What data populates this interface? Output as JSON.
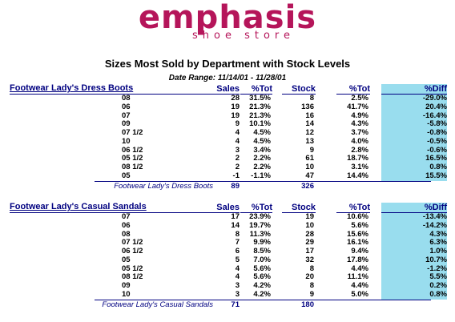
{
  "logo": {
    "main": "emphasis",
    "sub": "shoe store"
  },
  "report_title": "Sizes Most Sold by Department with Stock Levels",
  "date_range": "Date Range: 11/14/01 - 11/28/01",
  "columns": {
    "sales": "Sales",
    "pct_tot": "%Tot",
    "stock": "Stock",
    "stock_pct": "%Tot",
    "diff": "%Diff"
  },
  "sections": [
    {
      "department": "Footwear Lady's Dress Boots",
      "rows": [
        {
          "size": "08",
          "sales": "28",
          "pct": "31.5%",
          "stock": "8",
          "spct": "2.5%",
          "diff": "-29.0%"
        },
        {
          "size": "06",
          "sales": "19",
          "pct": "21.3%",
          "stock": "136",
          "spct": "41.7%",
          "diff": "20.4%"
        },
        {
          "size": "07",
          "sales": "19",
          "pct": "21.3%",
          "stock": "16",
          "spct": "4.9%",
          "diff": "-16.4%"
        },
        {
          "size": "09",
          "sales": "9",
          "pct": "10.1%",
          "stock": "14",
          "spct": "4.3%",
          "diff": "-5.8%"
        },
        {
          "size": "07 1/2",
          "sales": "4",
          "pct": "4.5%",
          "stock": "12",
          "spct": "3.7%",
          "diff": "-0.8%"
        },
        {
          "size": "10",
          "sales": "4",
          "pct": "4.5%",
          "stock": "13",
          "spct": "4.0%",
          "diff": "-0.5%"
        },
        {
          "size": "06 1/2",
          "sales": "3",
          "pct": "3.4%",
          "stock": "9",
          "spct": "2.8%",
          "diff": "-0.6%"
        },
        {
          "size": "05 1/2",
          "sales": "2",
          "pct": "2.2%",
          "stock": "61",
          "spct": "18.7%",
          "diff": "16.5%"
        },
        {
          "size": "08 1/2",
          "sales": "2",
          "pct": "2.2%",
          "stock": "10",
          "spct": "3.1%",
          "diff": "0.8%"
        },
        {
          "size": "05",
          "sales": "-1",
          "pct": "-1.1%",
          "stock": "47",
          "spct": "14.4%",
          "diff": "15.5%"
        }
      ],
      "total_label": "Footwear Lady's Dress Boots",
      "total_sales": "89",
      "total_stock": "326"
    },
    {
      "department": "Footwear Lady's Casual Sandals",
      "rows": [
        {
          "size": "07",
          "sales": "17",
          "pct": "23.9%",
          "stock": "19",
          "spct": "10.6%",
          "diff": "-13.4%"
        },
        {
          "size": "06",
          "sales": "14",
          "pct": "19.7%",
          "stock": "10",
          "spct": "5.6%",
          "diff": "-14.2%"
        },
        {
          "size": "08",
          "sales": "8",
          "pct": "11.3%",
          "stock": "28",
          "spct": "15.6%",
          "diff": "4.3%"
        },
        {
          "size": "07 1/2",
          "sales": "7",
          "pct": "9.9%",
          "stock": "29",
          "spct": "16.1%",
          "diff": "6.3%"
        },
        {
          "size": "06 1/2",
          "sales": "6",
          "pct": "8.5%",
          "stock": "17",
          "spct": "9.4%",
          "diff": "1.0%"
        },
        {
          "size": "05",
          "sales": "5",
          "pct": "7.0%",
          "stock": "32",
          "spct": "17.8%",
          "diff": "10.7%"
        },
        {
          "size": "05 1/2",
          "sales": "4",
          "pct": "5.6%",
          "stock": "8",
          "spct": "4.4%",
          "diff": "-1.2%"
        },
        {
          "size": "08 1/2",
          "sales": "4",
          "pct": "5.6%",
          "stock": "20",
          "spct": "11.1%",
          "diff": "5.5%"
        },
        {
          "size": "09",
          "sales": "3",
          "pct": "4.2%",
          "stock": "8",
          "spct": "4.4%",
          "diff": "0.2%"
        },
        {
          "size": "10",
          "sales": "3",
          "pct": "4.2%",
          "stock": "9",
          "spct": "5.0%",
          "diff": "0.8%"
        }
      ],
      "total_label": "Footwear Lady's Casual Sandals",
      "total_sales": "71",
      "total_stock": "180"
    }
  ]
}
